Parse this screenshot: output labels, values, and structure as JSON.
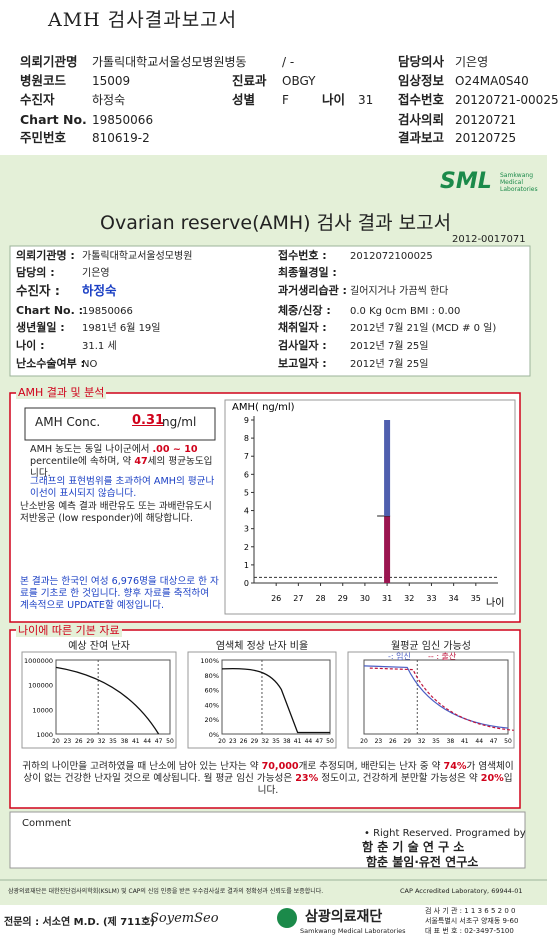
{
  "header": {
    "title": "AMH 검사결과보고서",
    "ward": "/ -",
    "fields": [
      {
        "label": "의뢰기관명",
        "value": "가톨릭대학교서울성모병원병동"
      },
      {
        "label": "담당의사",
        "value": "기은영"
      },
      {
        "label": "병원코드",
        "value": "15009"
      },
      {
        "label": "진료과",
        "value": "OBGY"
      },
      {
        "label": "임상정보",
        "value": "O24MA0S40"
      },
      {
        "label": "수진자",
        "value": "하정숙"
      },
      {
        "label": "성별",
        "value": "F"
      },
      {
        "label": "나이",
        "value": "31"
      },
      {
        "label": "접수번호",
        "value": "20120721-00025"
      },
      {
        "label": "Chart No.",
        "value": "19850066"
      },
      {
        "label": "검사의뢰",
        "value": "20120721"
      },
      {
        "label": "주민번호",
        "value": "810619-2"
      },
      {
        "label": "결과보고",
        "value": "20120725"
      }
    ]
  },
  "logo": {
    "text": "SML",
    "sub": "Samkwang Medical Laboratories"
  },
  "report": {
    "title": "Ovarian reserve(AMH) 검사 결과 보고서",
    "number": "2012-0017071",
    "left": [
      {
        "label": "의뢰기관명 :",
        "value": "가톨릭대학교서울성모병원"
      },
      {
        "label": "담당의 :",
        "value": "기은영"
      },
      {
        "label": "수진자 :",
        "value": "하정숙"
      },
      {
        "label": "Chart No. :",
        "value": "19850066"
      },
      {
        "label": "생년월일 :",
        "value": "1981년 6월 19일"
      },
      {
        "label": "나이 :",
        "value": "31.1 세"
      },
      {
        "label": "난소수술여부 :",
        "value": "NO"
      }
    ],
    "right": [
      {
        "label": "접수번호 :",
        "value": "2012072100025"
      },
      {
        "label": "최종월경일 :"
      },
      {
        "label": "과거생리습관 :",
        "value": "길어지거나 가끔씩 한다"
      },
      {
        "label": "체중/신장 :",
        "value": "0.0 Kg      0cm    BMI :  0.00"
      },
      {
        "label": "채취일자 :",
        "value": "2012년 7월 21일  (MCD #  0 일)"
      },
      {
        "label": "검사일자 :",
        "value": "2012년 7월 25일"
      },
      {
        "label": "보고일자 :",
        "value": "2012년 7월 25일"
      }
    ]
  },
  "analysis": {
    "title": "AMH 결과 및 분석",
    "conc_label": "AMH Conc.",
    "conc_value": "0.31",
    "conc_unit": "ng/ml",
    "p1": [
      {
        "text": "AMH 농도는 동일 나이군에서 "
      },
      {
        "text": ".00 ~ 10",
        "highlight": "red"
      },
      {
        "text": " percentile에 속하며, 약 "
      },
      {
        "text": "47",
        "highlight": "red"
      },
      {
        "text": "세의 평균농도입니다."
      }
    ],
    "p2": "그래프의 표현범위를 초과하여 AMH의 평균나이선이 표시되지 않습니다.",
    "p3": "난소반응 예측 결과 배란유도 또는 과배란유도시 저반응군 (low responder)에 해당합니다.",
    "p4": "본 결과는 한국인 여성 6,976명을 대상으로 한 자료를 기초로 한 것입니다. 향후 자료를 축적하여 계속적으로 UPDATE할 예정입니다.",
    "chart": {
      "y_label": "AMH( ng/ml)",
      "x_label": "나이",
      "ylim": [
        0,
        9
      ],
      "yticks": [
        0,
        1,
        2,
        3,
        4,
        5,
        6,
        7,
        8,
        9
      ],
      "xlim": [
        25,
        36
      ],
      "xticks": [
        26,
        27,
        28,
        29,
        30,
        31,
        32,
        33,
        34,
        35
      ],
      "bars": [
        {
          "x": 31,
          "value": 3.7,
          "color": "#9b1650"
        },
        {
          "x": 31,
          "value": 5.3,
          "color": "#4f5fae"
        }
      ],
      "patient_line": 0.31
    }
  },
  "basic": {
    "title": "나이에 따른 기본 자료",
    "charts": [
      {
        "title": "예상 잔여 난자",
        "yticks": [
          "1000000",
          "100000",
          "10000",
          "1000"
        ],
        "xticks": [
          20,
          23,
          26,
          29,
          32,
          35,
          38,
          41,
          44,
          47,
          50
        ]
      },
      {
        "title": "염색체 정상 난자 비율",
        "yticks": [
          "100%",
          "80%",
          "60%",
          "40%",
          "20%",
          "0%"
        ],
        "xticks": [
          20,
          23,
          26,
          29,
          32,
          35,
          38,
          41,
          44,
          47,
          50
        ]
      },
      {
        "title": "월평균 임신 가능성",
        "legend": [
          {
            "name": "-: 임신",
            "color": "#4a5ec4"
          },
          {
            "name": "-- : 출산",
            "color": "#c0143c"
          }
        ],
        "xticks": [
          20,
          23,
          26,
          29,
          32,
          35,
          38,
          41,
          44,
          47,
          50
        ]
      }
    ],
    "summary": [
      {
        "text": "귀하의 나이만을 고려하였을 때 난소에 남아 있는 난자는 약 "
      },
      {
        "text": "70,000",
        "highlight": "red"
      },
      {
        "text": "개로 추정되며, 배란되는 난자 중 약 "
      },
      {
        "text": "74%",
        "highlight": "red"
      },
      {
        "text": "가 염색체이상이 없는 건강한 난자일 것으로 예상됩니다. 월 평균 임신 가능성은 "
      },
      {
        "text": "23%",
        "highlight": "red"
      },
      {
        "text": " 정도이고, 건강하게 분만할 가능성은 약 "
      },
      {
        "text": "20%",
        "highlight": "red"
      },
      {
        "text": "입니다."
      }
    ]
  },
  "comment": {
    "label": "Comment"
  },
  "credits": {
    "line1": "• Right Reserved. Programed by",
    "line2": "함 춘 기 술 연 구 소",
    "line3": "함춘 불임·유전 연구소"
  },
  "footer": {
    "notice": "삼광의료재단은 대한진단검사의학회(KSLM) 및 CAP의 신입 인증을 받은 우수검사실로 결과의 정확성과 신뢰도를 보증합니다.",
    "cap": "CAP  Accredited  Laboratory,  69944-01",
    "doctor": "전문의 : 서소연 M.D. (제 711호)",
    "signature": "SoyemSeo",
    "org": "삼광의료재단",
    "org_en": "Samkwang Medical Laboratories",
    "contact": [
      "검 사 기 관 : 1 1 3 6 5 2 0 0",
      "서울특별시 서초구 양재동 9-60",
      "대 표 번 호 : 02-3497-5100"
    ]
  }
}
